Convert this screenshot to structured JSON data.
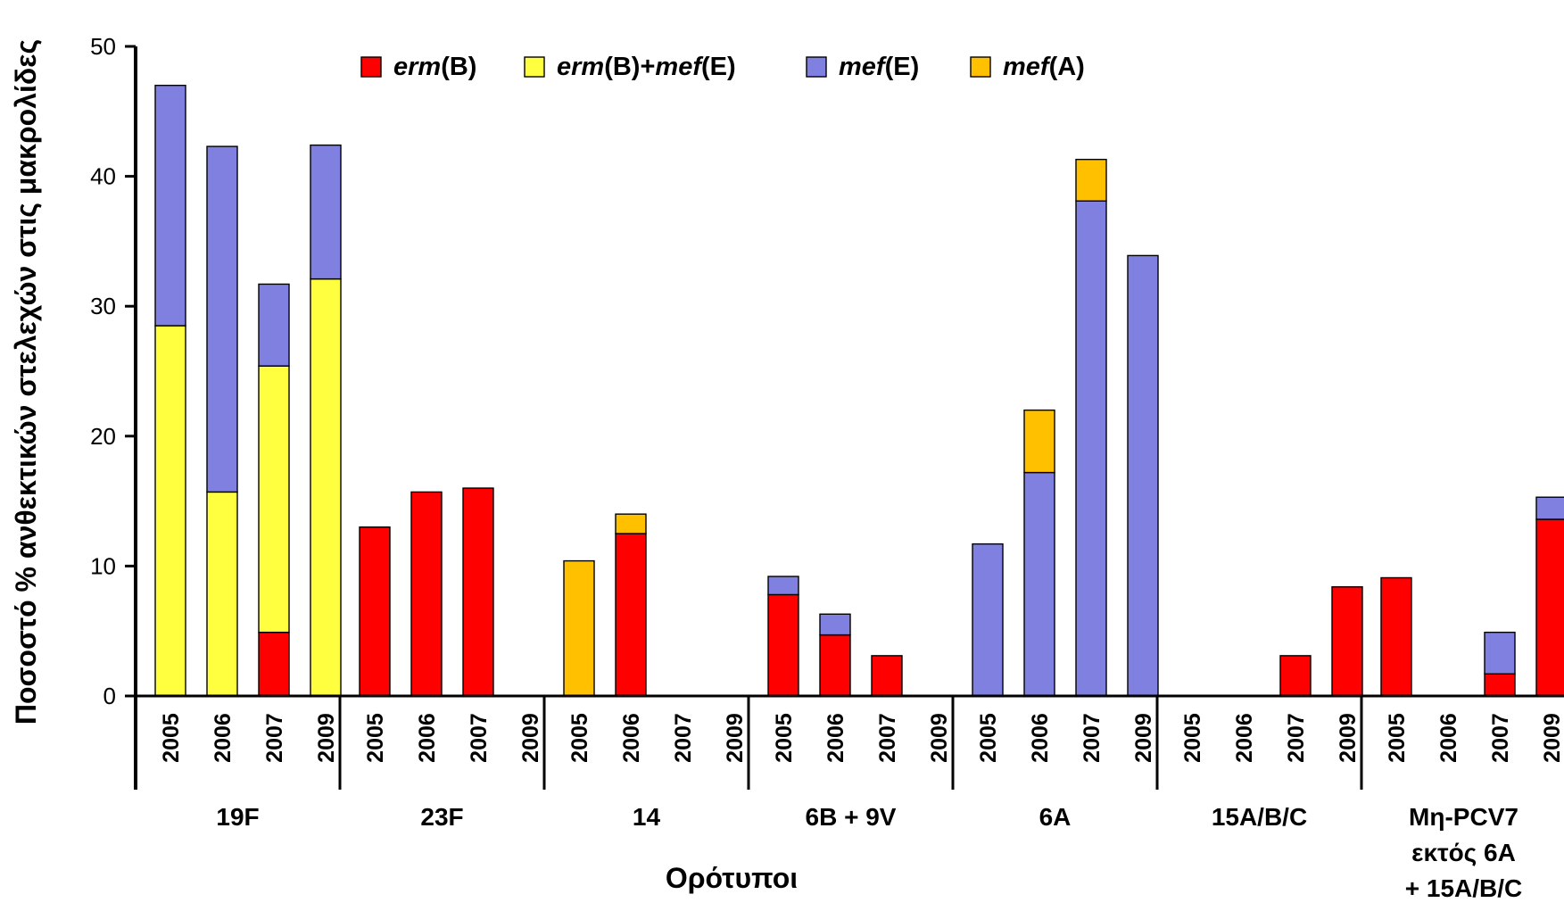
{
  "chart_data": {
    "type": "bar",
    "stacked": true,
    "ylabel": "Ποσοστό % ανθεκτικών στελεχών στις μακρολίδες",
    "xlabel": "Ορότυποι",
    "ylim": [
      0,
      50
    ],
    "yticks": [
      0,
      10,
      20,
      30,
      40,
      50
    ],
    "grid": false,
    "legend_position": "top-center",
    "series": [
      {
        "key": "ermB",
        "color": "#ff0000",
        "legend": [
          {
            "text": "erm",
            "italic": true
          },
          {
            "text": "(B)",
            "italic": false
          }
        ]
      },
      {
        "key": "ermB_mefE",
        "color": "#ffff40",
        "legend": [
          {
            "text": "erm",
            "italic": true
          },
          {
            "text": "(B)+",
            "italic": false
          },
          {
            "text": "mef",
            "italic": true
          },
          {
            "text": "(E)",
            "italic": false
          }
        ]
      },
      {
        "key": "mefE",
        "color": "#8080e0",
        "legend": [
          {
            "text": "mef",
            "italic": true
          },
          {
            "text": "(E)",
            "italic": false
          }
        ]
      },
      {
        "key": "mefA",
        "color": "#ffc000",
        "legend": [
          {
            "text": "mef",
            "italic": true
          },
          {
            "text": "(A)",
            "italic": false
          }
        ]
      }
    ],
    "groups": [
      {
        "label_lines": [
          "19F"
        ],
        "bars": [
          {
            "year": "2005",
            "ermB": 0,
            "ermB_mefE": 28.5,
            "mefE": 18.5,
            "mefA": 0
          },
          {
            "year": "2006",
            "ermB": 0,
            "ermB_mefE": 15.7,
            "mefE": 26.6,
            "mefA": 0
          },
          {
            "year": "2007",
            "ermB": 4.9,
            "ermB_mefE": 20.5,
            "mefE": 6.3,
            "mefA": 0
          },
          {
            "year": "2009",
            "ermB": 0,
            "ermB_mefE": 32.1,
            "mefE": 10.3,
            "mefA": 0
          }
        ]
      },
      {
        "label_lines": [
          "23F"
        ],
        "bars": [
          {
            "year": "2005",
            "ermB": 13.0,
            "ermB_mefE": 0,
            "mefE": 0,
            "mefA": 0
          },
          {
            "year": "2006",
            "ermB": 15.7,
            "ermB_mefE": 0,
            "mefE": 0,
            "mefA": 0
          },
          {
            "year": "2007",
            "ermB": 16.0,
            "ermB_mefE": 0,
            "mefE": 0,
            "mefA": 0
          },
          {
            "year": "2009",
            "ermB": 0,
            "ermB_mefE": 0,
            "mefE": 0,
            "mefA": 0
          }
        ]
      },
      {
        "label_lines": [
          "14"
        ],
        "bars": [
          {
            "year": "2005",
            "ermB": 0,
            "ermB_mefE": 0,
            "mefE": 0,
            "mefA": 10.4
          },
          {
            "year": "2006",
            "ermB": 12.5,
            "ermB_mefE": 0,
            "mefE": 0,
            "mefA": 1.5
          },
          {
            "year": "2007",
            "ermB": 0,
            "ermB_mefE": 0,
            "mefE": 0,
            "mefA": 0
          },
          {
            "year": "2009",
            "ermB": 0,
            "ermB_mefE": 0,
            "mefE": 0,
            "mefA": 0
          }
        ]
      },
      {
        "label_lines": [
          "6B + 9V"
        ],
        "bars": [
          {
            "year": "2005",
            "ermB": 7.8,
            "ermB_mefE": 0,
            "mefE": 1.4,
            "mefA": 0
          },
          {
            "year": "2006",
            "ermB": 4.7,
            "ermB_mefE": 0,
            "mefE": 1.6,
            "mefA": 0
          },
          {
            "year": "2007",
            "ermB": 3.1,
            "ermB_mefE": 0,
            "mefE": 0,
            "mefA": 0
          },
          {
            "year": "2009",
            "ermB": 0,
            "ermB_mefE": 0,
            "mefE": 0,
            "mefA": 0
          }
        ]
      },
      {
        "label_lines": [
          "6A"
        ],
        "bars": [
          {
            "year": "2005",
            "ermB": 0,
            "ermB_mefE": 0,
            "mefE": 11.7,
            "mefA": 0
          },
          {
            "year": "2006",
            "ermB": 0,
            "ermB_mefE": 0,
            "mefE": 17.2,
            "mefA": 4.8
          },
          {
            "year": "2007",
            "ermB": 0,
            "ermB_mefE": 0,
            "mefE": 38.1,
            "mefA": 3.2
          },
          {
            "year": "2009",
            "ermB": 0,
            "ermB_mefE": 0,
            "mefE": 33.9,
            "mefA": 0
          }
        ]
      },
      {
        "label_lines": [
          "15A/B/C"
        ],
        "bars": [
          {
            "year": "2005",
            "ermB": 0,
            "ermB_mefE": 0,
            "mefE": 0,
            "mefA": 0
          },
          {
            "year": "2006",
            "ermB": 0,
            "ermB_mefE": 0,
            "mefE": 0,
            "mefA": 0
          },
          {
            "year": "2007",
            "ermB": 3.1,
            "ermB_mefE": 0,
            "mefE": 0,
            "mefA": 0
          },
          {
            "year": "2009",
            "ermB": 8.4,
            "ermB_mefE": 0,
            "mefE": 0,
            "mefA": 0
          }
        ]
      },
      {
        "label_lines": [
          "Μη-PCV7",
          "εκτός 6Α",
          "+ 15A/B/C"
        ],
        "bars": [
          {
            "year": "2005",
            "ermB": 9.1,
            "ermB_mefE": 0,
            "mefE": 0,
            "mefA": 0
          },
          {
            "year": "2006",
            "ermB": 0,
            "ermB_mefE": 0,
            "mefE": 0,
            "mefA": 0
          },
          {
            "year": "2007",
            "ermB": 1.7,
            "ermB_mefE": 0,
            "mefE": 3.2,
            "mefA": 0
          },
          {
            "year": "2009",
            "ermB": 13.6,
            "ermB_mefE": 0,
            "mefE": 1.7,
            "mefA": 0
          }
        ]
      }
    ]
  }
}
